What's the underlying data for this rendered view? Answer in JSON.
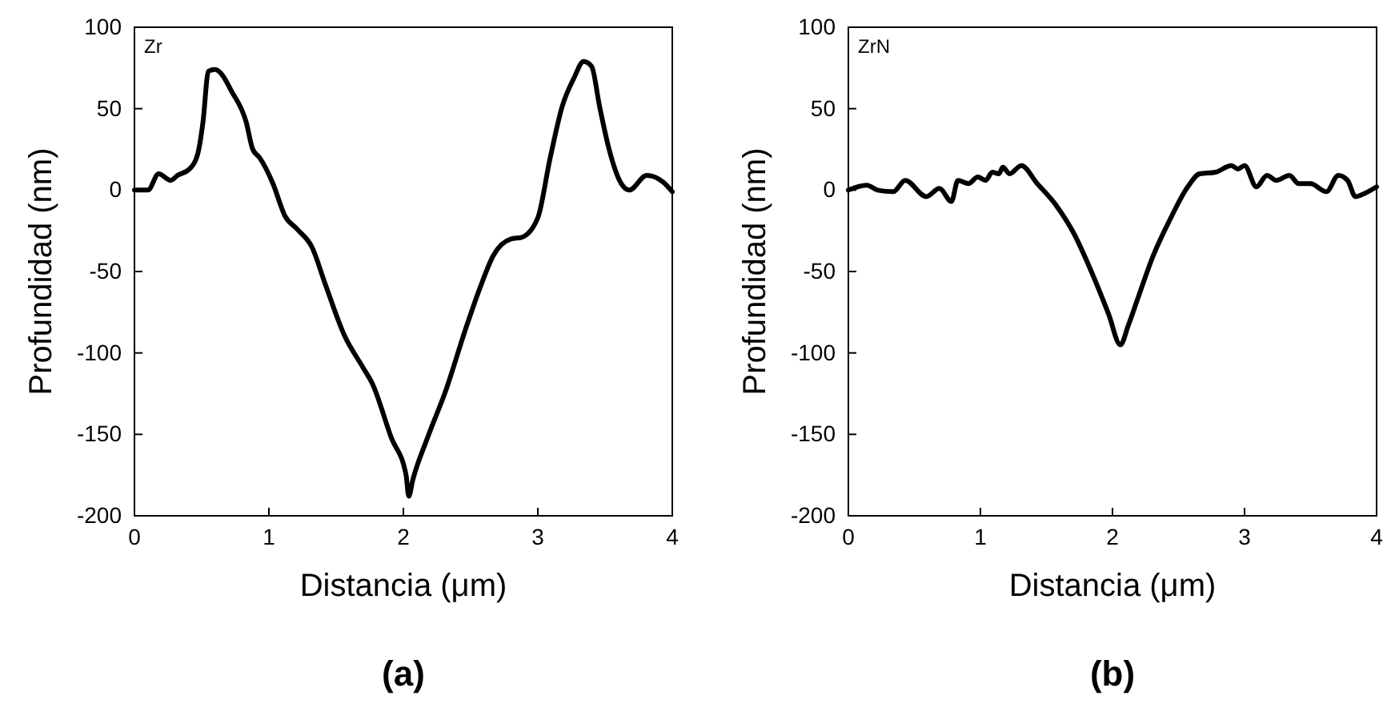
{
  "chart_data": [
    {
      "type": "line",
      "title": "(a)",
      "xlabel": "Distancia (μm)",
      "ylabel": "Profundidad (nm)",
      "annotations": [
        "Zr"
      ],
      "xlim": [
        0,
        4
      ],
      "ylim": [
        -200,
        100
      ],
      "xticks": [
        0,
        1,
        2,
        3,
        4
      ],
      "yticks": [
        -200,
        -150,
        -100,
        -50,
        0,
        50,
        100
      ],
      "grid": false,
      "series": [
        {
          "color": "#000000",
          "x": [
            0,
            0.1,
            0.18,
            0.27,
            0.32,
            0.41,
            0.47,
            0.51,
            0.55,
            0.6,
            0.65,
            0.72,
            0.83,
            0.88,
            0.93,
            1.03,
            1.12,
            1.21,
            1.32,
            1.42,
            1.56,
            1.7,
            1.77,
            1.91,
            2.02,
            2.04,
            2.07,
            2.18,
            2.32,
            2.46,
            2.57,
            2.67,
            2.8,
            2.88,
            3.0,
            3.09,
            3.18,
            3.27,
            3.34,
            3.4,
            3.46,
            3.53,
            3.62,
            3.68,
            3.81,
            3.93,
            4.0
          ],
          "values": [
            0,
            0,
            10,
            6,
            9,
            13,
            22,
            42,
            73,
            74,
            71,
            61,
            42,
            25,
            20,
            4,
            -16,
            -24,
            -35,
            -58,
            -89,
            -109,
            -119,
            -152,
            -175,
            -188,
            -178,
            -152,
            -122,
            -86,
            -60,
            -40,
            -30,
            -29,
            -17,
            19,
            51,
            69,
            79,
            76,
            51,
            25,
            4,
            0,
            9,
            5,
            -1
          ]
        }
      ]
    },
    {
      "type": "line",
      "title": "(b)",
      "xlabel": "Distancia (μm)",
      "ylabel": "Profundidad (nm)",
      "annotations": [
        "ZrN"
      ],
      "xlim": [
        0,
        4
      ],
      "ylim": [
        -200,
        100
      ],
      "xticks": [
        0,
        1,
        2,
        3,
        4
      ],
      "yticks": [
        -200,
        -150,
        -100,
        -50,
        0,
        50,
        100
      ],
      "grid": false,
      "series": [
        {
          "color": "#000000",
          "x": [
            0,
            0.14,
            0.22,
            0.34,
            0.43,
            0.59,
            0.69,
            0.78,
            0.83,
            0.91,
            0.98,
            1.04,
            1.09,
            1.14,
            1.17,
            1.22,
            1.31,
            1.43,
            1.57,
            1.71,
            1.84,
            1.97,
            2.06,
            2.12,
            2.19,
            2.31,
            2.43,
            2.57,
            2.66,
            2.78,
            2.9,
            2.95,
            3.0,
            3.09,
            3.17,
            3.24,
            3.34,
            3.41,
            3.5,
            3.62,
            3.71,
            3.78,
            3.84,
            3.91,
            4.0
          ],
          "values": [
            0,
            3,
            0,
            -1,
            6,
            -4,
            1,
            -7,
            6,
            4,
            8,
            6,
            11,
            10,
            14,
            10,
            15,
            4,
            -9,
            -27,
            -50,
            -76,
            -95,
            -83,
            -67,
            -40,
            -19,
            2,
            10,
            11,
            15,
            13,
            15,
            2,
            9,
            6,
            9,
            4,
            4,
            -1,
            9,
            6,
            -4,
            -2,
            2
          ]
        }
      ]
    }
  ]
}
